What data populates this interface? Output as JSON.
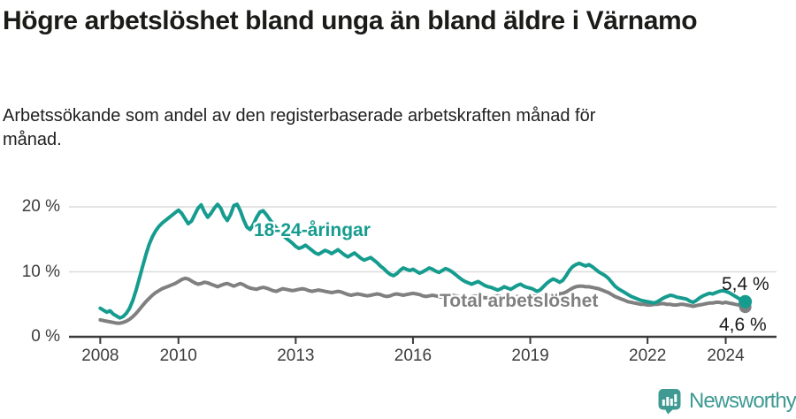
{
  "header": {
    "title": "Högre arbetslöshet bland unga än bland äldre i Värnamo",
    "subtitle": "Arbetssökande som andel av den registerbaserade arbetskraften månad för månad."
  },
  "footer": {
    "brand": "Newsworthy",
    "logo_icon": "bar-chart-speech-bubble-icon"
  },
  "colors": {
    "young_series": "#169c8f",
    "total_series": "#808080",
    "axis": "#3a3a3a",
    "grid": "#dcdcdc",
    "tick_text": "#3c3c3c",
    "brand_teal": "#3e9a92",
    "title_text": "#1b1b18"
  },
  "chart_data": {
    "type": "line",
    "title": "Högre arbetslöshet bland unga än bland äldre i Värnamo",
    "subtitle": "Arbetssökande som andel av den registerbaserade arbetskraften månad för månad.",
    "unit": "%",
    "x_start_year": 2008.0,
    "x_step_months": 1,
    "xlim": [
      2007.2,
      2025.3
    ],
    "ylim": [
      0,
      25
    ],
    "grid": "horizontal",
    "legend": "inline-labels",
    "x_ticks": [
      2008,
      2010,
      2013,
      2016,
      2019,
      2022,
      2024
    ],
    "x_tick_labels": [
      "2008",
      "2010",
      "2013",
      "2016",
      "2019",
      "2022",
      "2024"
    ],
    "y_ticks": [
      0,
      10,
      20
    ],
    "y_tick_labels": [
      "0 %",
      "10 %",
      "20 %"
    ],
    "series": [
      {
        "name": "18-24-åringar",
        "color": "#169c8f",
        "end_value_label": "5,4 %",
        "values": [
          4.4,
          4.1,
          3.8,
          4.0,
          3.5,
          3.2,
          2.9,
          3.1,
          3.6,
          4.4,
          5.6,
          7.2,
          9.0,
          10.8,
          12.6,
          14.2,
          15.4,
          16.3,
          17.0,
          17.5,
          17.9,
          18.3,
          18.7,
          19.1,
          19.5,
          19.0,
          18.2,
          17.4,
          17.8,
          18.8,
          19.8,
          20.3,
          19.2,
          18.4,
          19.0,
          19.8,
          20.4,
          19.8,
          18.6,
          17.9,
          18.8,
          20.2,
          20.4,
          19.4,
          18.0,
          16.9,
          16.5,
          17.3,
          18.4,
          19.2,
          19.4,
          18.8,
          18.1,
          17.4,
          16.8,
          16.2,
          15.7,
          15.2,
          14.8,
          14.4,
          13.9,
          13.6,
          13.8,
          14.1,
          13.7,
          13.3,
          12.9,
          12.7,
          13.0,
          13.3,
          13.1,
          12.8,
          13.1,
          13.4,
          13.0,
          12.6,
          12.3,
          12.6,
          12.9,
          12.5,
          12.1,
          11.8,
          12.0,
          12.2,
          11.8,
          11.4,
          10.9,
          10.5,
          10.0,
          9.6,
          9.4,
          9.7,
          10.2,
          10.6,
          10.4,
          10.2,
          10.4,
          10.1,
          9.8,
          10.0,
          10.3,
          10.6,
          10.4,
          10.1,
          9.9,
          10.2,
          10.5,
          10.3,
          10.0,
          9.6,
          9.2,
          8.8,
          8.5,
          8.3,
          8.1,
          8.3,
          8.5,
          8.2,
          7.9,
          7.7,
          7.6,
          7.4,
          7.2,
          7.4,
          7.7,
          7.5,
          7.3,
          7.6,
          7.9,
          8.1,
          7.8,
          7.6,
          7.5,
          7.3,
          7.0,
          7.2,
          7.7,
          8.2,
          8.6,
          8.9,
          8.7,
          8.4,
          8.7,
          9.4,
          10.2,
          10.8,
          11.1,
          11.3,
          11.1,
          10.9,
          11.1,
          10.8,
          10.4,
          10.0,
          9.7,
          9.4,
          9.0,
          8.4,
          7.8,
          7.4,
          7.1,
          6.8,
          6.5,
          6.2,
          6.0,
          5.8,
          5.6,
          5.5,
          5.4,
          5.3,
          5.2,
          5.4,
          5.7,
          6.0,
          6.2,
          6.4,
          6.3,
          6.1,
          6.0,
          5.9,
          5.8,
          5.5,
          5.3,
          5.6,
          6.0,
          6.3,
          6.5,
          6.7,
          6.6,
          6.8,
          7.0,
          7.1,
          7.0,
          6.8,
          6.5,
          6.2,
          5.9,
          5.6,
          5.4
        ]
      },
      {
        "name": "Total arbetslöshet",
        "color": "#808080",
        "end_value_label": "4,6 %",
        "values": [
          2.6,
          2.5,
          2.4,
          2.3,
          2.2,
          2.1,
          2.1,
          2.2,
          2.4,
          2.7,
          3.1,
          3.6,
          4.2,
          4.8,
          5.4,
          5.9,
          6.4,
          6.8,
          7.1,
          7.4,
          7.6,
          7.8,
          8.0,
          8.2,
          8.5,
          8.8,
          9.0,
          8.9,
          8.6,
          8.3,
          8.1,
          8.2,
          8.4,
          8.3,
          8.1,
          7.9,
          7.7,
          7.9,
          8.1,
          8.2,
          8.0,
          7.8,
          8.0,
          8.2,
          8.0,
          7.7,
          7.5,
          7.4,
          7.3,
          7.5,
          7.6,
          7.5,
          7.3,
          7.1,
          7.0,
          7.2,
          7.4,
          7.3,
          7.2,
          7.1,
          7.2,
          7.3,
          7.4,
          7.3,
          7.1,
          7.0,
          7.1,
          7.2,
          7.1,
          7.0,
          6.9,
          6.8,
          6.9,
          7.0,
          6.9,
          6.7,
          6.5,
          6.4,
          6.5,
          6.6,
          6.5,
          6.4,
          6.3,
          6.4,
          6.5,
          6.6,
          6.5,
          6.3,
          6.2,
          6.3,
          6.5,
          6.6,
          6.5,
          6.4,
          6.5,
          6.6,
          6.7,
          6.6,
          6.5,
          6.3,
          6.2,
          6.3,
          6.4,
          6.3,
          6.2,
          6.1,
          6.2,
          6.3,
          6.4,
          6.3,
          6.2,
          6.1,
          6.0,
          6.1,
          6.2,
          6.3,
          6.2,
          6.1,
          6.0,
          6.0,
          6.1,
          6.2,
          6.3,
          6.2,
          6.0,
          5.9,
          6.0,
          6.1,
          6.2,
          6.1,
          6.0,
          6.1,
          6.2,
          6.3,
          6.2,
          6.1,
          6.2,
          6.3,
          6.4,
          6.5,
          6.5,
          6.6,
          6.7,
          6.9,
          7.2,
          7.5,
          7.7,
          7.8,
          7.8,
          7.7,
          7.7,
          7.6,
          7.5,
          7.4,
          7.2,
          7.0,
          6.8,
          6.5,
          6.2,
          6.0,
          5.8,
          5.6,
          5.4,
          5.3,
          5.2,
          5.1,
          5.0,
          5.0,
          4.9,
          4.9,
          5.0,
          5.0,
          5.1,
          5.1,
          5.0,
          5.0,
          4.9,
          4.9,
          5.0,
          5.0,
          4.9,
          4.8,
          4.7,
          4.8,
          4.9,
          5.0,
          5.1,
          5.2,
          5.2,
          5.3,
          5.3,
          5.2,
          5.3,
          5.2,
          5.1,
          5.0,
          4.9,
          4.7,
          4.6
        ]
      }
    ],
    "annotations": {
      "series1_end_label": "5,4 %",
      "series2_end_label": "4,6 %"
    }
  }
}
